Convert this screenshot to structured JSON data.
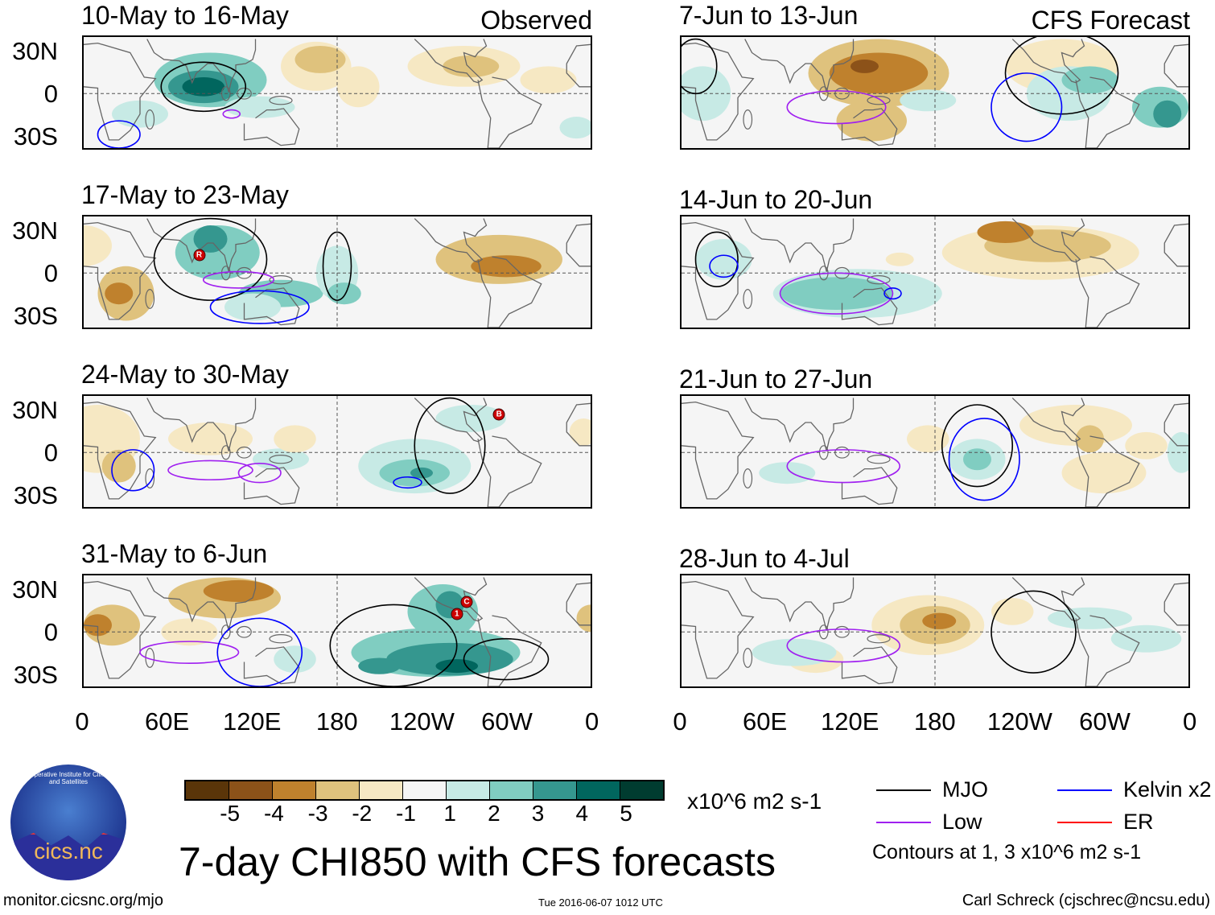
{
  "header": {
    "observed_label": "Observed",
    "forecast_label": "CFS Forecast"
  },
  "y_axis": [
    "30N",
    "0",
    "30S"
  ],
  "x_axis": [
    "0",
    "60E",
    "120E",
    "180",
    "120W",
    "60W",
    "0"
  ],
  "colorbar": {
    "labels": [
      "-5",
      "-4",
      "-3",
      "-2",
      "-1",
      "1",
      "2",
      "3",
      "4",
      "5"
    ],
    "colors": [
      "#5a3509",
      "#8c5219",
      "#bf812d",
      "#dfc27d",
      "#f6e8c3",
      "#f5f5f5",
      "#c7eae5",
      "#80cdc1",
      "#35978f",
      "#01665e",
      "#003c30"
    ],
    "units": "x10^6 m2 s-1"
  },
  "title": "7-day CHI850 with CFS forecasts",
  "legend": {
    "items": [
      {
        "label": "MJO",
        "color": "#000000"
      },
      {
        "label": "Kelvin x2",
        "color": "#0000ff"
      },
      {
        "label": "Low",
        "color": "#a020f0"
      },
      {
        "label": "ER",
        "color": "#ff0000"
      }
    ],
    "note": "Contours at 1, 3 x10^6 m2 s-1"
  },
  "logo": {
    "text": "cics.nc",
    "ring_text": "Cooperative Institute for Climate and Satellites"
  },
  "footer": {
    "url": "monitor.cicsnc.org/mjo",
    "timestamp": "Tue 2016-06-07 1012 UTC",
    "author": "Carl Schreck (cjschrec@ncsu.edu)"
  },
  "chart_data": {
    "type": "heatmap",
    "variable": "CHI850 anomaly (x10^6 m2 s-1), blobs as [lon, lat, lon_radius, lat_radius, value]",
    "lon_range": [
      0,
      360
    ],
    "lat_range": [
      -40,
      40
    ],
    "panels": [
      {
        "title": "10-May to 16-May",
        "kind": "Observed",
        "blobs": [
          [
            90,
            10,
            40,
            20,
            2
          ],
          [
            85,
            5,
            25,
            12,
            3
          ],
          [
            85,
            5,
            15,
            7,
            4
          ],
          [
            40,
            -15,
            20,
            10,
            1
          ],
          [
            125,
            -10,
            25,
            8,
            1
          ],
          [
            350,
            -25,
            12,
            8,
            1
          ],
          [
            165,
            20,
            25,
            18,
            -1
          ],
          [
            168,
            25,
            18,
            10,
            -2
          ],
          [
            195,
            5,
            15,
            15,
            -1
          ],
          [
            270,
            20,
            40,
            15,
            -1
          ],
          [
            275,
            20,
            20,
            8,
            -2
          ],
          [
            330,
            10,
            20,
            10,
            -1
          ]
        ],
        "contours": [
          [
            "MJO",
            85,
            5,
            30,
            18
          ],
          [
            "Low",
            105,
            -15,
            6,
            3
          ],
          [
            "Kelvin x2",
            25,
            -30,
            15,
            10
          ]
        ],
        "storms": []
      },
      {
        "title": "17-May to 23-May",
        "kind": "Observed",
        "blobs": [
          [
            95,
            15,
            30,
            20,
            2
          ],
          [
            90,
            25,
            12,
            10,
            3
          ],
          [
            140,
            -15,
            30,
            10,
            2
          ],
          [
            120,
            -25,
            20,
            10,
            1
          ],
          [
            180,
            0,
            15,
            20,
            1
          ],
          [
            185,
            -15,
            12,
            8,
            2
          ],
          [
            30,
            -15,
            20,
            20,
            -2
          ],
          [
            25,
            -15,
            10,
            8,
            -3
          ],
          [
            0,
            20,
            20,
            15,
            -1
          ],
          [
            295,
            10,
            45,
            18,
            -2
          ],
          [
            300,
            5,
            25,
            8,
            -3
          ]
        ],
        "contours": [
          [
            "MJO",
            90,
            10,
            40,
            30
          ],
          [
            "MJO",
            180,
            5,
            10,
            25
          ],
          [
            "Low",
            110,
            -5,
            25,
            6
          ],
          [
            "Kelvin x2",
            125,
            -25,
            35,
            12
          ]
        ],
        "storms": [
          {
            "label": "R",
            "lon": 82,
            "lat": 13
          }
        ]
      },
      {
        "title": "24-May to 30-May",
        "kind": "Observed",
        "blobs": [
          [
            235,
            -10,
            40,
            20,
            1
          ],
          [
            235,
            -15,
            25,
            10,
            2
          ],
          [
            240,
            -15,
            8,
            4,
            3
          ],
          [
            275,
            25,
            25,
            10,
            1
          ],
          [
            140,
            -5,
            20,
            8,
            1
          ],
          [
            10,
            10,
            30,
            25,
            -1
          ],
          [
            25,
            -10,
            12,
            12,
            -2
          ],
          [
            90,
            10,
            30,
            12,
            -1
          ],
          [
            150,
            10,
            15,
            10,
            -1
          ],
          [
            355,
            15,
            10,
            10,
            -1
          ]
        ],
        "contours": [
          [
            "MJO",
            260,
            5,
            25,
            35
          ],
          [
            "Low",
            90,
            -13,
            30,
            7
          ],
          [
            "Low",
            125,
            -15,
            15,
            7
          ],
          [
            "Kelvin x2",
            35,
            -13,
            15,
            15
          ],
          [
            "Kelvin x2",
            230,
            -22,
            10,
            4
          ]
        ],
        "storms": [
          {
            "label": "B",
            "lon": 295,
            "lat": 28
          }
        ]
      },
      {
        "title": "31-May to 6-Jun",
        "kind": "Observed",
        "blobs": [
          [
            250,
            -15,
            60,
            18,
            2
          ],
          [
            260,
            -20,
            45,
            12,
            3
          ],
          [
            265,
            -25,
            15,
            5,
            4
          ],
          [
            210,
            -25,
            15,
            6,
            3
          ],
          [
            255,
            15,
            25,
            20,
            2
          ],
          [
            260,
            20,
            10,
            10,
            3
          ],
          [
            150,
            -20,
            15,
            10,
            1
          ],
          [
            100,
            25,
            40,
            15,
            -2
          ],
          [
            110,
            30,
            25,
            8,
            -3
          ],
          [
            20,
            5,
            20,
            15,
            -2
          ],
          [
            10,
            5,
            10,
            8,
            -3
          ],
          [
            75,
            0,
            20,
            10,
            -1
          ],
          [
            360,
            10,
            10,
            10,
            -2
          ]
        ],
        "contours": [
          [
            "MJO",
            220,
            -10,
            45,
            30
          ],
          [
            "MJO",
            300,
            -20,
            30,
            15
          ],
          [
            "Low",
            75,
            -15,
            35,
            8
          ],
          [
            "Kelvin x2",
            125,
            -15,
            30,
            25
          ]
        ],
        "storms": [
          {
            "label": "1",
            "lon": 265,
            "lat": 13
          },
          {
            "label": "C",
            "lon": 272,
            "lat": 22
          }
        ]
      },
      {
        "title": "7-Jun to 13-Jun",
        "kind": "CFS Forecast",
        "blobs": [
          [
            140,
            15,
            50,
            25,
            -2
          ],
          [
            140,
            15,
            35,
            15,
            -3
          ],
          [
            130,
            20,
            10,
            5,
            -4
          ],
          [
            135,
            -20,
            25,
            15,
            -2
          ],
          [
            270,
            20,
            40,
            20,
            -1
          ],
          [
            275,
            0,
            30,
            20,
            1
          ],
          [
            290,
            10,
            20,
            10,
            2
          ],
          [
            340,
            -10,
            20,
            15,
            2
          ],
          [
            345,
            -15,
            10,
            10,
            3
          ],
          [
            15,
            0,
            20,
            20,
            1
          ],
          [
            175,
            -5,
            20,
            8,
            1
          ]
        ],
        "contours": [
          [
            "MJO",
            270,
            15,
            40,
            30
          ],
          [
            "MJO",
            10,
            20,
            15,
            20
          ],
          [
            "Low",
            110,
            -10,
            35,
            12
          ],
          [
            "Kelvin x2",
            245,
            -10,
            25,
            25
          ]
        ],
        "storms": []
      },
      {
        "title": "14-Jun to 20-Jun",
        "kind": "CFS Forecast",
        "blobs": [
          [
            125,
            -15,
            60,
            18,
            1
          ],
          [
            110,
            -15,
            40,
            12,
            2
          ],
          [
            30,
            10,
            20,
            15,
            1
          ],
          [
            255,
            15,
            70,
            20,
            -1
          ],
          [
            260,
            20,
            45,
            12,
            -2
          ],
          [
            230,
            30,
            20,
            8,
            -3
          ],
          [
            155,
            10,
            10,
            5,
            -1
          ]
        ],
        "contours": [
          [
            "MJO",
            25,
            10,
            15,
            20
          ],
          [
            "Low",
            110,
            -15,
            40,
            15
          ],
          [
            "Kelvin x2",
            30,
            5,
            10,
            8
          ],
          [
            "Kelvin x2",
            150,
            -15,
            6,
            4
          ]
        ],
        "storms": []
      },
      {
        "title": "21-Jun to 27-Jun",
        "kind": "CFS Forecast",
        "blobs": [
          [
            210,
            -5,
            20,
            15,
            1
          ],
          [
            210,
            -5,
            10,
            8,
            2
          ],
          [
            75,
            -15,
            20,
            8,
            1
          ],
          [
            355,
            0,
            10,
            15,
            1
          ],
          [
            175,
            10,
            15,
            10,
            -1
          ],
          [
            300,
            -15,
            30,
            15,
            -1
          ],
          [
            280,
            20,
            40,
            15,
            -1
          ],
          [
            290,
            10,
            10,
            10,
            -2
          ],
          [
            330,
            5,
            15,
            10,
            -1
          ]
        ],
        "contours": [
          [
            "MJO",
            210,
            5,
            25,
            30
          ],
          [
            "Low",
            115,
            -10,
            40,
            12
          ],
          [
            "Kelvin x2",
            215,
            -5,
            25,
            30
          ]
        ],
        "storms": []
      },
      {
        "title": "28-Jun to 4-Jul",
        "kind": "CFS Forecast",
        "blobs": [
          [
            175,
            5,
            40,
            22,
            -1
          ],
          [
            180,
            5,
            25,
            14,
            -2
          ],
          [
            183,
            8,
            12,
            6,
            -3
          ],
          [
            95,
            -20,
            20,
            10,
            -1
          ],
          [
            235,
            15,
            15,
            10,
            -1
          ],
          [
            80,
            -15,
            30,
            10,
            1
          ],
          [
            290,
            10,
            30,
            8,
            1
          ],
          [
            330,
            -5,
            25,
            10,
            1
          ]
        ],
        "contours": [
          [
            "MJO",
            250,
            0,
            30,
            30
          ],
          [
            "Low",
            115,
            -10,
            40,
            12
          ]
        ],
        "storms": []
      }
    ]
  }
}
